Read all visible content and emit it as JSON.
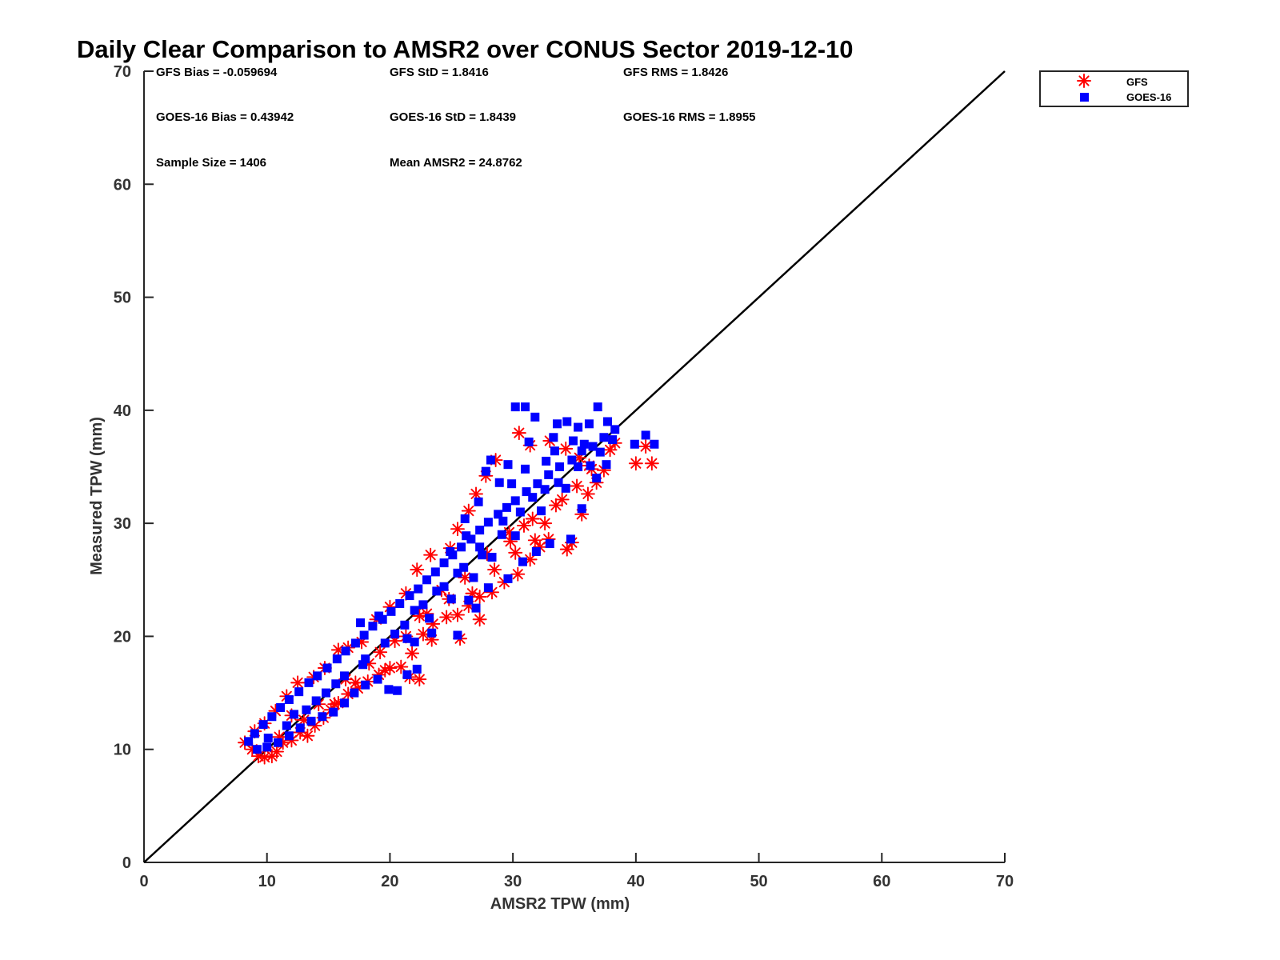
{
  "chart_data": {
    "type": "scatter",
    "title": "Daily Clear Comparison to AMSR2 over CONUS Sector 2019-12-10",
    "xlabel": "AMSR2 TPW (mm)",
    "ylabel": "Measured TPW (mm)",
    "xlim": [
      0,
      70
    ],
    "ylim": [
      0,
      70
    ],
    "xticks": [
      "0",
      "10",
      "20",
      "30",
      "40",
      "50",
      "60",
      "70"
    ],
    "yticks": [
      "0",
      "10",
      "20",
      "30",
      "40",
      "50",
      "60",
      "70"
    ],
    "reference_line": {
      "name": "1:1 line",
      "from": [
        0,
        0
      ],
      "to": [
        70,
        70
      ],
      "color": "#000000"
    },
    "legend": {
      "position": "top-right-outside",
      "entries": [
        "GFS",
        "GOES-16"
      ]
    },
    "stats": {
      "gfs_bias": "GFS Bias = -0.059694",
      "gfs_std": "GFS StD = 1.8416",
      "gfs_rms": "GFS RMS = 1.8426",
      "goes_bias": "GOES-16 Bias = 0.43942",
      "goes_std": "GOES-16 StD = 1.8439",
      "goes_rms": "GOES-16 RMS = 1.8955",
      "sample_size": "Sample Size = 1406",
      "mean_amsr2": "Mean AMSR2 = 24.8762"
    },
    "series": [
      {
        "name": "GFS",
        "marker": "asterisk",
        "color": "#ff0000",
        "points": [
          [
            8.2,
            10.6
          ],
          [
            8.8,
            10.0
          ],
          [
            9.3,
            9.4
          ],
          [
            9.8,
            9.3
          ],
          [
            10.4,
            9.4
          ],
          [
            10.8,
            9.8
          ],
          [
            11.3,
            10.6
          ],
          [
            12.0,
            10.8
          ],
          [
            12.7,
            11.5
          ],
          [
            13.3,
            11.2
          ],
          [
            13.9,
            12.1
          ],
          [
            14.6,
            12.8
          ],
          [
            15.2,
            13.5
          ],
          [
            15.8,
            14.1
          ],
          [
            16.6,
            14.9
          ],
          [
            17.4,
            15.4
          ],
          [
            18.2,
            16.0
          ],
          [
            19.1,
            16.6
          ],
          [
            20.0,
            17.2
          ],
          [
            20.9,
            17.3
          ],
          [
            21.6,
            16.4
          ],
          [
            22.4,
            16.2
          ],
          [
            21.8,
            18.5
          ],
          [
            22.7,
            20.2
          ],
          [
            23.5,
            21.1
          ],
          [
            24.6,
            21.7
          ],
          [
            25.5,
            21.9
          ],
          [
            26.4,
            22.7
          ],
          [
            27.3,
            23.5
          ],
          [
            28.3,
            23.9
          ],
          [
            29.3,
            24.8
          ],
          [
            30.4,
            25.5
          ],
          [
            31.4,
            26.8
          ],
          [
            32.2,
            27.9
          ],
          [
            32.9,
            28.6
          ],
          [
            34.4,
            27.7
          ],
          [
            34.8,
            28.3
          ],
          [
            35.6,
            30.8
          ],
          [
            36.1,
            32.6
          ],
          [
            36.8,
            33.6
          ],
          [
            37.4,
            34.7
          ],
          [
            38.3,
            37.1
          ],
          [
            40.0,
            35.3
          ],
          [
            41.3,
            35.3
          ],
          [
            40.8,
            36.8
          ],
          [
            30.5,
            38.0
          ],
          [
            31.4,
            36.9
          ],
          [
            33.0,
            37.3
          ],
          [
            34.3,
            36.6
          ],
          [
            35.4,
            35.8
          ],
          [
            36.4,
            34.8
          ],
          [
            28.6,
            35.6
          ],
          [
            27.8,
            34.2
          ],
          [
            27.0,
            32.6
          ],
          [
            26.4,
            31.1
          ],
          [
            25.5,
            29.5
          ],
          [
            24.9,
            27.8
          ],
          [
            23.3,
            27.2
          ],
          [
            22.2,
            25.9
          ],
          [
            21.3,
            23.8
          ],
          [
            20.0,
            22.6
          ],
          [
            18.9,
            21.5
          ],
          [
            17.7,
            19.5
          ],
          [
            16.6,
            19.0
          ],
          [
            15.8,
            18.8
          ],
          [
            14.7,
            17.2
          ],
          [
            13.8,
            16.4
          ],
          [
            12.5,
            15.9
          ],
          [
            11.6,
            14.7
          ],
          [
            10.7,
            13.4
          ],
          [
            9.8,
            12.3
          ],
          [
            9.0,
            11.6
          ],
          [
            25.7,
            19.8
          ],
          [
            23.4,
            19.7
          ],
          [
            19.2,
            18.6
          ],
          [
            12.0,
            13.0
          ],
          [
            14.2,
            14.0
          ],
          [
            16.4,
            16.2
          ],
          [
            18.3,
            17.6
          ],
          [
            20.4,
            19.6
          ],
          [
            22.4,
            21.8
          ],
          [
            24.2,
            24.1
          ],
          [
            26.1,
            25.2
          ],
          [
            27.9,
            27.3
          ],
          [
            29.7,
            29.2
          ],
          [
            31.6,
            30.4
          ],
          [
            33.5,
            31.6
          ],
          [
            35.2,
            33.3
          ],
          [
            27.3,
            21.5
          ],
          [
            29.8,
            28.4
          ],
          [
            31.8,
            28.5
          ],
          [
            30.9,
            29.8
          ],
          [
            11.0,
            11.1
          ],
          [
            13.0,
            12.6
          ],
          [
            15.5,
            14.0
          ],
          [
            17.2,
            15.9
          ],
          [
            19.6,
            17.0
          ],
          [
            21.3,
            20.0
          ],
          [
            23.0,
            22.0
          ],
          [
            24.8,
            23.3
          ],
          [
            26.7,
            23.8
          ],
          [
            28.5,
            25.9
          ],
          [
            30.2,
            27.4
          ],
          [
            32.6,
            30.0
          ],
          [
            34.0,
            32.1
          ],
          [
            36.2,
            35.1
          ],
          [
            37.9,
            36.5
          ]
        ]
      },
      {
        "name": "GOES-16",
        "marker": "square",
        "color": "#0000ff",
        "points": [
          [
            30.2,
            40.3
          ],
          [
            31.0,
            40.3
          ],
          [
            31.8,
            39.4
          ],
          [
            33.6,
            38.8
          ],
          [
            34.4,
            39.0
          ],
          [
            35.3,
            38.5
          ],
          [
            36.2,
            38.8
          ],
          [
            36.9,
            40.3
          ],
          [
            37.7,
            39.0
          ],
          [
            40.8,
            37.8
          ],
          [
            41.5,
            37.0
          ],
          [
            39.9,
            37.0
          ],
          [
            38.3,
            38.3
          ],
          [
            37.4,
            37.6
          ],
          [
            36.5,
            36.8
          ],
          [
            35.6,
            36.4
          ],
          [
            34.8,
            35.6
          ],
          [
            33.8,
            35.0
          ],
          [
            32.9,
            34.3
          ],
          [
            32.0,
            33.5
          ],
          [
            31.1,
            32.8
          ],
          [
            30.2,
            32.0
          ],
          [
            29.5,
            31.4
          ],
          [
            28.8,
            30.8
          ],
          [
            28.0,
            30.1
          ],
          [
            27.3,
            29.4
          ],
          [
            26.6,
            28.6
          ],
          [
            25.8,
            27.9
          ],
          [
            25.1,
            27.2
          ],
          [
            24.4,
            26.5
          ],
          [
            23.7,
            25.7
          ],
          [
            23.0,
            25.0
          ],
          [
            22.3,
            24.2
          ],
          [
            21.6,
            23.6
          ],
          [
            20.8,
            22.9
          ],
          [
            20.1,
            22.2
          ],
          [
            19.4,
            21.5
          ],
          [
            18.6,
            20.9
          ],
          [
            17.9,
            20.1
          ],
          [
            17.2,
            19.4
          ],
          [
            16.4,
            18.7
          ],
          [
            15.7,
            18.0
          ],
          [
            14.9,
            17.2
          ],
          [
            14.1,
            16.5
          ],
          [
            13.4,
            15.9
          ],
          [
            12.6,
            15.1
          ],
          [
            11.8,
            14.4
          ],
          [
            11.1,
            13.7
          ],
          [
            10.4,
            12.9
          ],
          [
            9.7,
            12.2
          ],
          [
            9.0,
            11.4
          ],
          [
            8.5,
            10.7
          ],
          [
            9.2,
            10.0
          ],
          [
            10.0,
            10.2
          ],
          [
            10.9,
            10.6
          ],
          [
            11.8,
            11.2
          ],
          [
            12.7,
            11.9
          ],
          [
            13.6,
            12.5
          ],
          [
            14.5,
            12.9
          ],
          [
            15.4,
            13.3
          ],
          [
            16.3,
            14.1
          ],
          [
            17.1,
            15.0
          ],
          [
            18.0,
            15.7
          ],
          [
            19.0,
            16.2
          ],
          [
            19.9,
            15.3
          ],
          [
            20.6,
            15.2
          ],
          [
            21.4,
            16.6
          ],
          [
            22.2,
            17.1
          ],
          [
            22.0,
            19.5
          ],
          [
            23.4,
            20.3
          ],
          [
            25.5,
            20.1
          ],
          [
            27.0,
            22.5
          ],
          [
            26.4,
            23.2
          ],
          [
            28.0,
            24.3
          ],
          [
            29.6,
            25.1
          ],
          [
            30.8,
            26.6
          ],
          [
            31.9,
            27.5
          ],
          [
            33.0,
            28.2
          ],
          [
            34.7,
            28.6
          ],
          [
            35.6,
            31.3
          ],
          [
            36.8,
            34.0
          ],
          [
            37.6,
            35.2
          ],
          [
            27.8,
            34.6
          ],
          [
            28.2,
            35.6
          ],
          [
            29.6,
            35.2
          ],
          [
            31.3,
            37.2
          ],
          [
            33.3,
            37.6
          ],
          [
            34.9,
            37.3
          ],
          [
            32.6,
            33.0
          ],
          [
            30.6,
            31.0
          ],
          [
            29.1,
            29.0
          ],
          [
            27.5,
            27.2
          ],
          [
            26.0,
            26.1
          ],
          [
            24.4,
            24.4
          ],
          [
            22.7,
            22.8
          ],
          [
            21.2,
            21.0
          ],
          [
            19.6,
            19.4
          ],
          [
            18.0,
            18.0
          ],
          [
            16.3,
            16.5
          ],
          [
            14.8,
            15.0
          ],
          [
            13.2,
            13.5
          ],
          [
            11.6,
            12.1
          ],
          [
            10.1,
            11.0
          ],
          [
            17.6,
            21.2
          ],
          [
            19.1,
            21.8
          ],
          [
            26.1,
            30.4
          ],
          [
            27.2,
            31.9
          ],
          [
            28.9,
            33.6
          ],
          [
            31.0,
            34.8
          ],
          [
            33.4,
            36.4
          ],
          [
            35.8,
            37.0
          ],
          [
            36.3,
            35.1
          ],
          [
            34.3,
            33.1
          ],
          [
            32.3,
            31.1
          ],
          [
            30.2,
            28.9
          ],
          [
            28.3,
            27.0
          ],
          [
            26.8,
            25.2
          ],
          [
            25.0,
            23.3
          ],
          [
            23.2,
            21.6
          ],
          [
            21.4,
            19.8
          ],
          [
            24.9,
            27.5
          ],
          [
            26.2,
            28.9
          ],
          [
            29.9,
            33.5
          ],
          [
            32.7,
            35.5
          ],
          [
            12.2,
            13.1
          ],
          [
            14.0,
            14.3
          ],
          [
            15.6,
            15.8
          ],
          [
            17.8,
            17.5
          ],
          [
            20.4,
            20.2
          ],
          [
            22.0,
            22.3
          ],
          [
            23.8,
            24.0
          ],
          [
            25.5,
            25.6
          ],
          [
            27.3,
            27.9
          ],
          [
            29.2,
            30.2
          ],
          [
            31.6,
            32.3
          ],
          [
            33.7,
            33.6
          ],
          [
            35.3,
            35.0
          ],
          [
            37.1,
            36.3
          ],
          [
            38.1,
            37.4
          ]
        ]
      }
    ]
  }
}
